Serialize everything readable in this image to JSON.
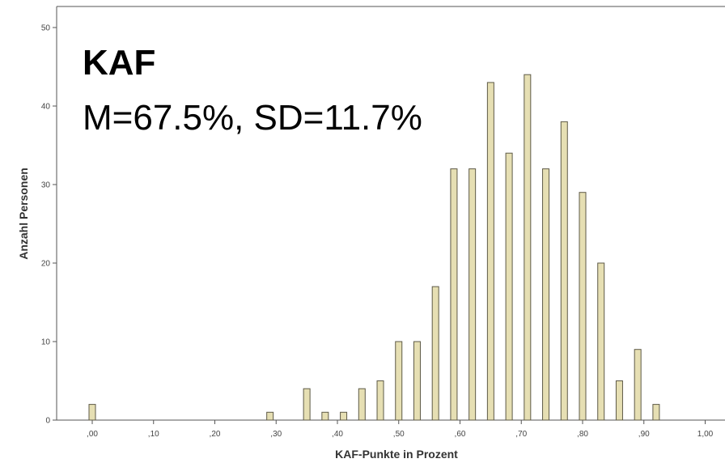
{
  "colors": {
    "bar_fill": "#e6dfb3",
    "bar_stroke": "#5e5a47",
    "axis": "#555555"
  },
  "overlay": {
    "title": "KAF",
    "subtitle": "M=67.5%, SD=11.7%"
  },
  "chart_data": {
    "type": "bar",
    "title": "KAF",
    "subtitle": "M=67.5%, SD=11.7%",
    "xlabel": "KAF-Punkte in Prozent",
    "ylabel": "Anzahl Personen",
    "xlim": [
      -0.05,
      1.02
    ],
    "ylim": [
      0,
      50
    ],
    "x_ticks": [
      0,
      0.1,
      0.2,
      0.3,
      0.4,
      0.5,
      0.6,
      0.7,
      0.8,
      0.9,
      1.0
    ],
    "x_tick_labels": [
      ",00",
      ",10",
      ",20",
      ",30",
      ",40",
      ",50",
      ",60",
      ",70",
      ",80",
      ",90",
      "1,00"
    ],
    "y_ticks": [
      0,
      10,
      20,
      30,
      40,
      50
    ],
    "y_tick_labels": [
      "0",
      "10",
      "20",
      "30",
      "40",
      "50"
    ],
    "grid": false,
    "x": [
      0.0,
      0.29,
      0.35,
      0.38,
      0.41,
      0.44,
      0.47,
      0.5,
      0.53,
      0.56,
      0.59,
      0.62,
      0.65,
      0.68,
      0.71,
      0.74,
      0.77,
      0.8,
      0.83,
      0.86,
      0.89,
      0.92
    ],
    "values": [
      2,
      1,
      4,
      1,
      1,
      4,
      5,
      10,
      10,
      17,
      32,
      32,
      43,
      34,
      44,
      32,
      38,
      29,
      20,
      5,
      9,
      2
    ]
  }
}
